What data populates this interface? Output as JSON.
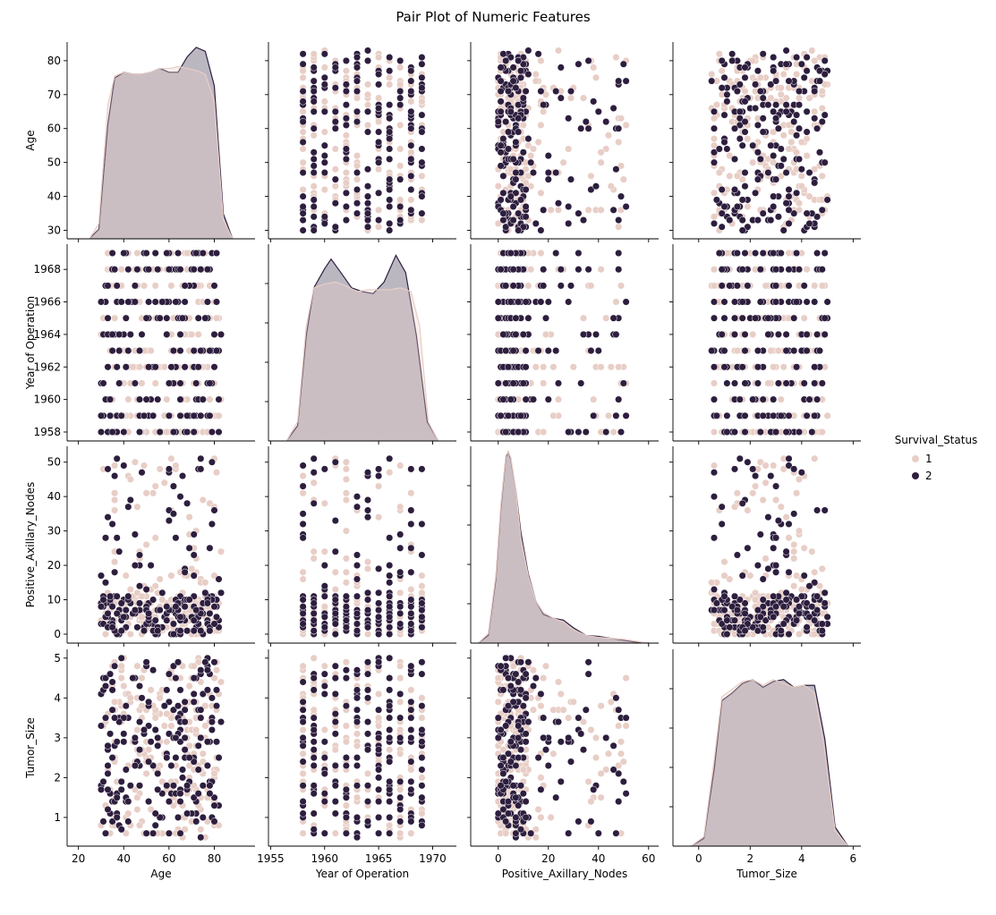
{
  "chart_data": {
    "type": "scatter",
    "subtype": "pairplot",
    "title": "Pair Plot of Numeric Features",
    "variables": [
      {
        "key": "age",
        "label": "Age",
        "range": [
          25,
          88
        ],
        "xlim": [
          15,
          98
        ],
        "ylim": [
          27.5,
          85.5
        ],
        "xticks": [
          20,
          40,
          60,
          80
        ],
        "yticks": [
          30,
          40,
          50,
          60,
          70,
          80
        ],
        "integer": true
      },
      {
        "key": "year",
        "label": "Year of Operation",
        "range": [
          1958,
          1969
        ],
        "xlim": [
          1954.8,
          1972.2
        ],
        "ylim": [
          1957.45,
          1969.55
        ],
        "xticks": [
          1955,
          1960,
          1965,
          1970
        ],
        "yticks": [
          1958,
          1960,
          1962,
          1964,
          1966,
          1968
        ],
        "integer": true
      },
      {
        "key": "nodes",
        "label": "Positive_Axillary_Nodes",
        "range": [
          0,
          52
        ],
        "xlim": [
          -11,
          64
        ],
        "ylim": [
          -2.6,
          54.6
        ],
        "xticks": [
          0,
          20,
          40,
          60
        ],
        "yticks": [
          0,
          10,
          20,
          30,
          40,
          50
        ],
        "integer": true
      },
      {
        "key": "tumor",
        "label": "Tumor_Size",
        "range": [
          0.5,
          5.0
        ],
        "xlim": [
          -1.0,
          6.3
        ],
        "ylim": [
          0.28,
          5.22
        ],
        "xticks": [
          0,
          2,
          4,
          6
        ],
        "yticks": [
          1,
          2,
          3,
          4,
          5
        ],
        "integer": false
      }
    ],
    "hue": {
      "name": "Survival_Status",
      "levels": [
        "1",
        "2"
      ],
      "colors": {
        "1": "#e8cec6",
        "2": "#2d1e3e"
      }
    },
    "kde": {
      "age": {
        "1": [
          [
            25,
            0.003
          ],
          [
            29,
            0.08
          ],
          [
            33,
            0.7
          ],
          [
            36,
            0.85
          ],
          [
            40,
            0.87
          ],
          [
            44,
            0.86
          ],
          [
            48,
            0.86
          ],
          [
            52,
            0.87
          ],
          [
            56,
            0.89
          ],
          [
            60,
            0.89
          ],
          [
            64,
            0.9
          ],
          [
            68,
            0.89
          ],
          [
            72,
            0.88
          ],
          [
            76,
            0.86
          ],
          [
            80,
            0.72
          ],
          [
            84,
            0.1
          ],
          [
            88,
            0.003
          ]
        ],
        "2": [
          [
            25,
            0.003
          ],
          [
            29,
            0.05
          ],
          [
            33,
            0.6
          ],
          [
            36,
            0.84
          ],
          [
            40,
            0.87
          ],
          [
            44,
            0.86
          ],
          [
            48,
            0.86
          ],
          [
            52,
            0.87
          ],
          [
            56,
            0.89
          ],
          [
            60,
            0.87
          ],
          [
            64,
            0.87
          ],
          [
            68,
            0.95
          ],
          [
            72,
            1.0
          ],
          [
            76,
            0.98
          ],
          [
            80,
            0.8
          ],
          [
            84,
            0.13
          ],
          [
            88,
            0.003
          ]
        ]
      },
      "year": {
        "1": [
          [
            1956.5,
            0.003
          ],
          [
            1957.5,
            0.1
          ],
          [
            1958.3,
            0.6
          ],
          [
            1959,
            0.8
          ],
          [
            1960,
            0.82
          ],
          [
            1961,
            0.83
          ],
          [
            1962,
            0.81
          ],
          [
            1963,
            0.78
          ],
          [
            1964,
            0.79
          ],
          [
            1965,
            0.79
          ],
          [
            1966,
            0.79
          ],
          [
            1967,
            0.8
          ],
          [
            1968,
            0.78
          ],
          [
            1968.8,
            0.6
          ],
          [
            1969.6,
            0.1
          ],
          [
            1970.5,
            0.003
          ]
        ],
        "2": [
          [
            1956.5,
            0.003
          ],
          [
            1957.5,
            0.08
          ],
          [
            1958.3,
            0.55
          ],
          [
            1959,
            0.8
          ],
          [
            1960,
            0.9
          ],
          [
            1960.6,
            0.95
          ],
          [
            1961.5,
            0.88
          ],
          [
            1962.5,
            0.8
          ],
          [
            1963.5,
            0.78
          ],
          [
            1964.5,
            0.77
          ],
          [
            1965.5,
            0.83
          ],
          [
            1966.6,
            0.97
          ],
          [
            1967.5,
            0.88
          ],
          [
            1968.5,
            0.55
          ],
          [
            1969.5,
            0.1
          ],
          [
            1970.5,
            0.003
          ]
        ]
      },
      "nodes": {
        "1": [
          [
            -8,
            0.0
          ],
          [
            -4,
            0.05
          ],
          [
            -1,
            0.35
          ],
          [
            1,
            0.72
          ],
          [
            3,
            0.98
          ],
          [
            4,
            1.0
          ],
          [
            5,
            0.97
          ],
          [
            7,
            0.8
          ],
          [
            9,
            0.55
          ],
          [
            12,
            0.35
          ],
          [
            15,
            0.22
          ],
          [
            18,
            0.16
          ],
          [
            22,
            0.13
          ],
          [
            26,
            0.11
          ],
          [
            30,
            0.07
          ],
          [
            35,
            0.04
          ],
          [
            40,
            0.03
          ],
          [
            45,
            0.025
          ],
          [
            50,
            0.02
          ],
          [
            55,
            0.01
          ],
          [
            60,
            0.0
          ]
        ],
        "2": [
          [
            -8,
            0.0
          ],
          [
            -4,
            0.04
          ],
          [
            -1,
            0.33
          ],
          [
            1,
            0.7
          ],
          [
            3,
            0.97
          ],
          [
            4,
            1.0
          ],
          [
            5,
            0.96
          ],
          [
            7,
            0.8
          ],
          [
            9,
            0.58
          ],
          [
            12,
            0.36
          ],
          [
            15,
            0.22
          ],
          [
            18,
            0.15
          ],
          [
            22,
            0.13
          ],
          [
            26,
            0.12
          ],
          [
            30,
            0.08
          ],
          [
            35,
            0.04
          ],
          [
            40,
            0.035
          ],
          [
            45,
            0.025
          ],
          [
            50,
            0.015
          ],
          [
            55,
            0.005
          ],
          [
            60,
            0.0
          ]
        ]
      },
      "tumor": {
        "1": [
          [
            -0.3,
            0.0
          ],
          [
            0.2,
            0.05
          ],
          [
            0.6,
            0.45
          ],
          [
            0.9,
            0.78
          ],
          [
            1.3,
            0.82
          ],
          [
            1.7,
            0.86
          ],
          [
            2.1,
            0.87
          ],
          [
            2.5,
            0.84
          ],
          [
            2.9,
            0.87
          ],
          [
            3.3,
            0.85
          ],
          [
            3.7,
            0.83
          ],
          [
            4.1,
            0.84
          ],
          [
            4.5,
            0.8
          ],
          [
            4.9,
            0.5
          ],
          [
            5.3,
            0.08
          ],
          [
            5.8,
            0.0
          ]
        ],
        "2": [
          [
            -0.3,
            0.0
          ],
          [
            0.2,
            0.04
          ],
          [
            0.6,
            0.4
          ],
          [
            0.9,
            0.76
          ],
          [
            1.3,
            0.8
          ],
          [
            1.7,
            0.85
          ],
          [
            2.1,
            0.87
          ],
          [
            2.5,
            0.83
          ],
          [
            2.9,
            0.86
          ],
          [
            3.3,
            0.87
          ],
          [
            3.7,
            0.83
          ],
          [
            4.1,
            0.84
          ],
          [
            4.5,
            0.84
          ],
          [
            4.9,
            0.56
          ],
          [
            5.3,
            0.1
          ],
          [
            5.8,
            0.0
          ]
        ]
      }
    },
    "legend": {
      "title": "Survival_Status",
      "position": "right"
    },
    "grid": false,
    "n_points": 400
  }
}
